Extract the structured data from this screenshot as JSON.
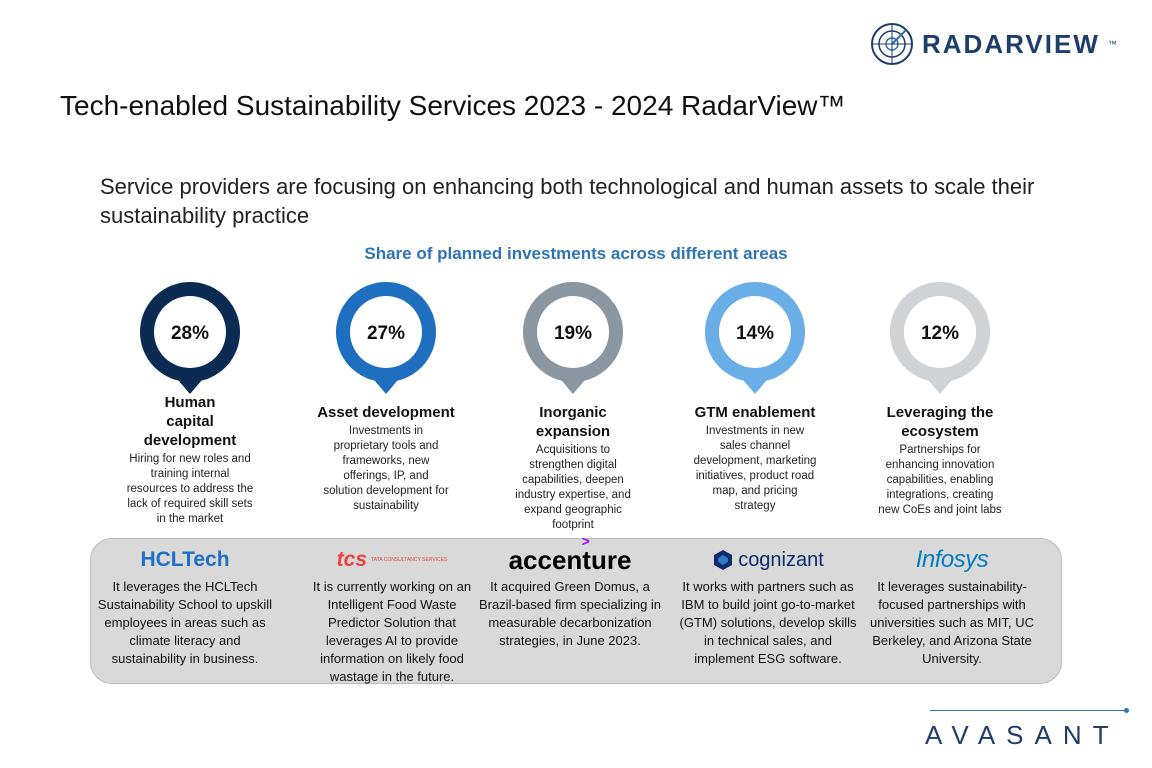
{
  "brand": {
    "name": "RADARVIEW",
    "tm": "™",
    "footer": "AVASANT"
  },
  "title": "Tech-enabled Sustainability Services 2023 - 2024 RadarView™",
  "subtitle": "Service providers are focusing on enhancing both technological and human assets to scale their sustainability practice",
  "chart_data": {
    "type": "pie",
    "title": "Share of planned investments across different areas",
    "categories": [
      "Human capital development",
      "Asset development",
      "Inorganic expansion",
      "GTM enablement",
      "Leveraging the ecosystem"
    ],
    "values": [
      28,
      27,
      19,
      14,
      12
    ],
    "labels": [
      "28%",
      "27%",
      "19%",
      "14%",
      "12%"
    ],
    "colors": [
      "#0b2b52",
      "#1f6fc0",
      "#8a96a0",
      "#6aaee8",
      "#d0d3d6"
    ],
    "descriptions": [
      "Hiring for new roles and training internal resources to address the lack of required skill sets in the market",
      "Investments in proprietary tools and frameworks, new offerings, IP, and solution development for sustainability",
      "Acquisitions to strengthen digital capabilities, deepen industry expertise, and expand geographic footprint",
      "Investments in new sales channel development, marketing initiatives, product road map, and pricing strategy",
      "Partnerships for enhancing innovation capabilities, enabling integrations, creating new CoEs and joint labs"
    ]
  },
  "providers": [
    {
      "name": "HCLTech",
      "text": "It leverages the HCLTech Sustainability School to upskill employees in areas such as climate literacy and sustainability in business."
    },
    {
      "name": "tcs",
      "sub": "TATA CONSULTANCY SERVICES",
      "text": "It is currently working on an Intelligent Food Waste Predictor Solution that leverages AI to provide information on likely food wastage in the future."
    },
    {
      "name": "accenture",
      "text": "It acquired Green Domus, a Brazil-based firm specializing in measurable decarbonization strategies, in June 2023."
    },
    {
      "name": "cognizant",
      "text": "It works with partners such as IBM to build joint go-to-market (GTM) solutions, develop skills in technical sales, and implement ESG software."
    },
    {
      "name": "Infosys",
      "text": "It leverages sustainability-focused partnerships with universities such as MIT, UC Berkeley, and Arizona State University."
    }
  ]
}
